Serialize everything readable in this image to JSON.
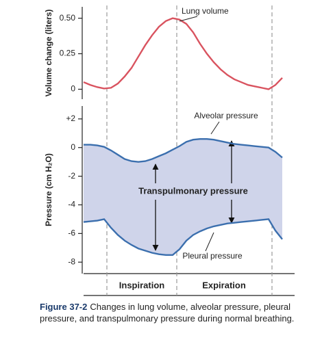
{
  "chart_data": [
    {
      "type": "line",
      "y_label": "Volume change (liters)",
      "ylim": [
        -0.07,
        0.58
      ],
      "yticks": [
        0,
        0.25,
        {
          "value": 0.5,
          "label": "0.50"
        }
      ],
      "series": [
        {
          "name": "Lung volume",
          "color": "#d9535f",
          "values": [
            0.05,
            0.03,
            0.015,
            0.005,
            0.01,
            0.04,
            0.09,
            0.15,
            0.23,
            0.31,
            0.38,
            0.44,
            0.48,
            0.5,
            0.49,
            0.46,
            0.4,
            0.32,
            0.25,
            0.19,
            0.14,
            0.1,
            0.07,
            0.05,
            0.03,
            0.02,
            0.01,
            0.0,
            0.03,
            0.08
          ]
        }
      ]
    },
    {
      "type": "band",
      "y_label": "Pressure (cm H₂O)",
      "ylim": [
        -8.8,
        2.9
      ],
      "yticks": [
        {
          "value": 2,
          "label": "+2"
        },
        0,
        -2,
        -4,
        -6,
        -8
      ],
      "fill_color": "#cfd4ea",
      "annotation": "Transpulmonary pressure",
      "series": [
        {
          "name": "Alveolar pressure",
          "color": "#3b6fae",
          "values": [
            0.2,
            0.2,
            0.15,
            0.05,
            -0.2,
            -0.5,
            -0.8,
            -0.95,
            -1.0,
            -0.95,
            -0.8,
            -0.6,
            -0.4,
            -0.15,
            0.1,
            0.4,
            0.55,
            0.6,
            0.6,
            0.55,
            0.45,
            0.35,
            0.25,
            0.2,
            0.15,
            0.1,
            0.05,
            0.0,
            -0.3,
            -0.7
          ]
        },
        {
          "name": "Pleural pressure",
          "color": "#3b6fae",
          "values": [
            -5.2,
            -5.15,
            -5.1,
            -5.0,
            -5.6,
            -6.1,
            -6.5,
            -6.8,
            -7.05,
            -7.2,
            -7.35,
            -7.45,
            -7.5,
            -7.5,
            -7.1,
            -6.5,
            -6.1,
            -5.85,
            -5.65,
            -5.5,
            -5.4,
            -5.3,
            -5.25,
            -5.2,
            -5.15,
            -5.1,
            -5.05,
            -5.0,
            -5.8,
            -6.4
          ]
        }
      ]
    }
  ],
  "phases": [
    "Inspiration",
    "Expiration"
  ],
  "caption": {
    "label": "Figure 37-2",
    "text": "Changes in lung volume, alveolar pressure, pleural pressure, and transpulmonary pressure during normal breathing."
  }
}
